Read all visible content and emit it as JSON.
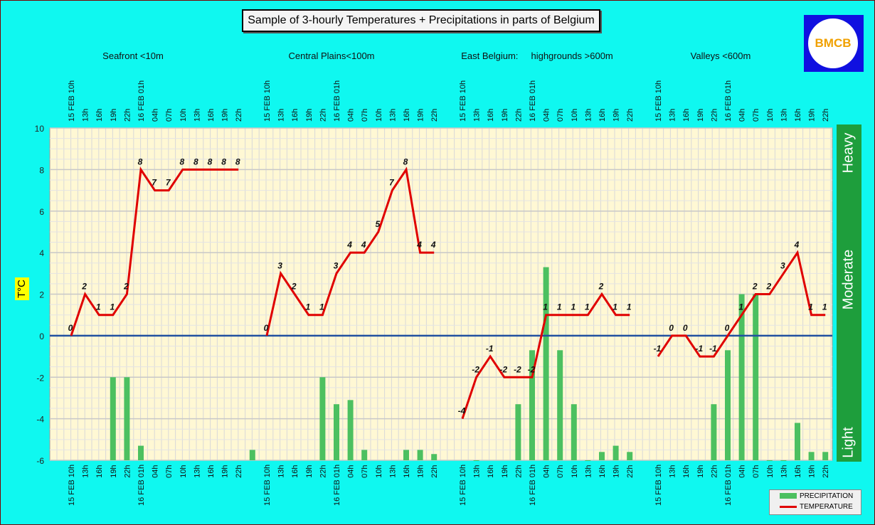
{
  "title": "Sample of 3-hourly Temperatures + Precipitations in parts of Belgium",
  "logo": {
    "text": "BMCB"
  },
  "legend": {
    "precipitation": "PRECIPITATION",
    "temperature": "TEMPERATURE"
  },
  "colors": {
    "plot_bg": "#fff8d4",
    "grid": "#d8d8d8",
    "temperature": "#e00000",
    "precipitation": "#4cc060",
    "zero_line": "#2050a0",
    "intensity_bar": "#1e9e3c"
  },
  "intensity": {
    "levels": [
      "Light",
      "Moderate",
      "Heavy"
    ]
  },
  "chart_data": {
    "type": "bar+line",
    "ylabel": "T°C",
    "ylim": [
      -6,
      10
    ],
    "yticks": [
      10,
      8,
      6,
      4,
      2,
      0,
      -2,
      -4,
      -6
    ],
    "grid": true,
    "legend_position": "bottom-right",
    "regions": [
      {
        "name": "Seafront <10m",
        "x": [
          "15 FEB 10h",
          "13h",
          "16h",
          "19h",
          "22h",
          "16 FEB 01h",
          "04h",
          "07h",
          "10h",
          "13h",
          "16h",
          "19h",
          "22h"
        ],
        "temperature": [
          0,
          2,
          1,
          1,
          2,
          8,
          7,
          7,
          8,
          8,
          8,
          8,
          8
        ],
        "precipitation_top": [
          null,
          null,
          -2,
          -2,
          -5.3,
          null,
          null,
          null,
          null,
          null,
          null,
          null,
          -5.5
        ]
      },
      {
        "name": "Central Plains<100m",
        "x": [
          "15 FEB 10h",
          "13h",
          "16h",
          "19h",
          "22h",
          "16 FEB 01h",
          "04h",
          "07h",
          "10h",
          "13h",
          "16h",
          "19h",
          "22h"
        ],
        "temperature": [
          0,
          3,
          2,
          1,
          1,
          3,
          4,
          4,
          5,
          7,
          8,
          4,
          4
        ],
        "precipitation_top": [
          null,
          null,
          null,
          -2,
          -3.3,
          -3.1,
          -5.5,
          null,
          null,
          -5.5,
          -5.5,
          -5.7,
          null
        ]
      },
      {
        "name": "East Belgium:     highgrounds >600m",
        "x": [
          "15 FEB 10h",
          "13h",
          "16h",
          "19h",
          "22h",
          "16 FEB 01h",
          "04h",
          "07h",
          "10h",
          "13h",
          "16h",
          "19h",
          "22h"
        ],
        "temperature": [
          -4,
          -2,
          -1,
          -2,
          -2,
          -2,
          1,
          1,
          1,
          1,
          2,
          1,
          1
        ],
        "precipitation_top": [
          -6,
          null,
          null,
          -3.3,
          -0.7,
          3.3,
          -0.7,
          -3.3,
          -6,
          -5.6,
          -5.3,
          -5.6,
          null
        ]
      },
      {
        "name": "Valleys <600m",
        "x": [
          "15 FEB 10h",
          "13h",
          "16h",
          "19h",
          "22h",
          "16 FEB 01h",
          "04h",
          "07h",
          "10h",
          "13h",
          "16h",
          "19h",
          "22h"
        ],
        "temperature": [
          -1,
          0,
          0,
          -1,
          -1,
          0,
          1,
          2,
          2,
          3,
          4,
          1,
          1
        ],
        "precipitation_top": [
          null,
          null,
          null,
          -3.3,
          -0.7,
          2,
          2,
          -6,
          -6,
          -4.2,
          -5.6,
          -5.6,
          null
        ]
      }
    ]
  }
}
